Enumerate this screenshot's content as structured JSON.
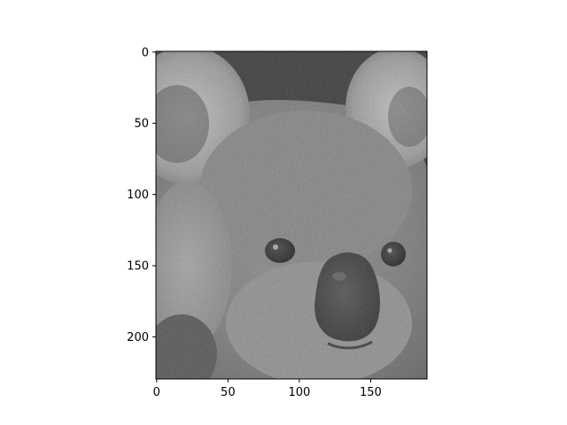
{
  "chart_data": {
    "type": "heatmap",
    "subject": "grayscale koala face photo displayed with imshow",
    "colormap": "gray",
    "image_shape": [
      230,
      190
    ],
    "xlim": [
      -0.5,
      189.5
    ],
    "ylim": [
      229.5,
      -0.5
    ],
    "y_axis_inverted": true,
    "x_ticks": [
      0,
      50,
      100,
      150
    ],
    "x_tick_labels": [
      "0",
      "50",
      "100",
      "150"
    ],
    "y_ticks": [
      0,
      50,
      100,
      150,
      200
    ],
    "y_tick_labels": [
      "0",
      "50",
      "100",
      "150",
      "200"
    ],
    "grid": false,
    "title": "",
    "xlabel": "",
    "ylabel": ""
  }
}
